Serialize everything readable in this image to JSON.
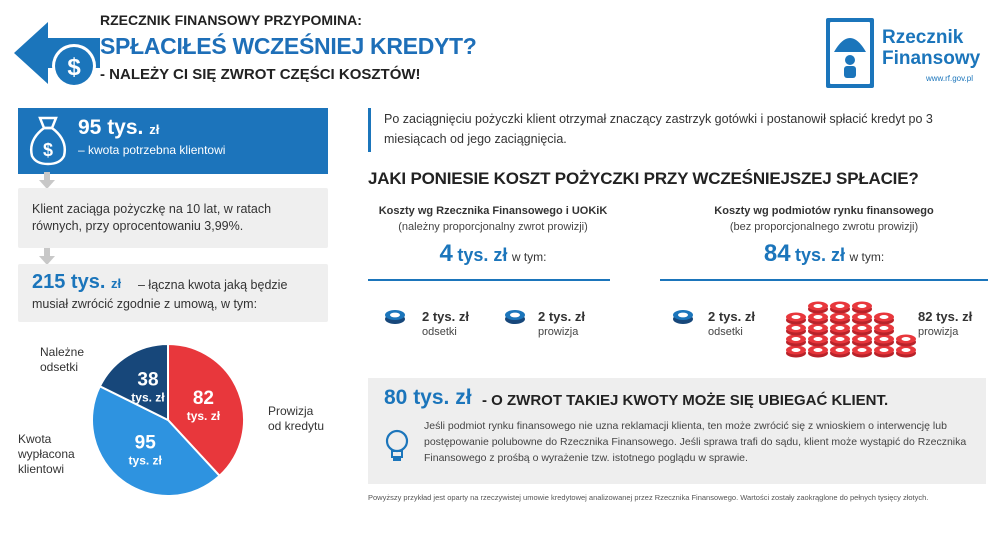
{
  "header": {
    "kicker": "RZECZNIK FINANSOWY PRZYPOMINA:",
    "title": "SPŁACIŁEŚ WCZEŚNIEJ KREDYT?",
    "subtitle": "- NALEŻY CI SIĘ ZWROT CZĘŚCI KOSZTÓW!"
  },
  "logo": {
    "line1": "Rzecznik",
    "line2": "Finansowy",
    "url": "www.rf.gov.pl"
  },
  "left": {
    "amount_value": "95 tys.",
    "amount_unit": "zł",
    "amount_desc": "– kwota potrzebna klientowi",
    "loan_desc": "Klient zaciąga pożyczkę na 10 lat, w ratach równych, przy oprocentowaniu 3,99%.",
    "total_value": "215 tys.",
    "total_unit": "zł",
    "total_desc_1": "– łączna kwota jaką będzie",
    "total_desc_2": "musiał zwrócić zgodnie z umową, w tym:"
  },
  "chart_data": {
    "type": "pie",
    "title": "",
    "slices": [
      {
        "label": "Prowizja od kredytu",
        "value": 82,
        "value_label": "82",
        "unit": "tys. zł",
        "color": "#e8373c"
      },
      {
        "label": "Kwota wypłacona klientowi",
        "value": 95,
        "value_label": "95",
        "unit": "tys. zł",
        "color": "#2e93e0"
      },
      {
        "label": "Należne odsetki",
        "value": 38,
        "value_label": "38",
        "unit": "tys. zł",
        "color": "#17477a"
      }
    ],
    "legend": "outside-labels"
  },
  "pie_labels": {
    "prowizja_1": "Prowizja",
    "prowizja_2": "od kredytu",
    "kwota_1": "Kwota",
    "kwota_2": "wypłacona",
    "kwota_3": "klientowi",
    "odsetki_1": "Należne",
    "odsetki_2": "odsetki"
  },
  "right": {
    "intro": "Po zaciągnięciu pożyczki klient otrzymał znaczący zastrzyk gotówki i postanowił spłacić kredyt po 3 miesiącach od jego zaciągnięcia.",
    "question": "JAKI PONIESIE KOSZT POŻYCZKI PRZY WCZEŚNIEJSZEJ SPŁACIE?",
    "col_a": {
      "heading": "Koszty wg Rzecznika Finansowego i UOKiK",
      "subheading": "(należny proporcjonalny zwrot prowizji)",
      "total_value": "4",
      "total_unit": "tys. zł",
      "total_suffix": "w tym:",
      "item1_value": "2 tys. zł",
      "item1_label": "odsetki",
      "item2_value": "2 tys. zł",
      "item2_label": "prowizja"
    },
    "col_b": {
      "heading": "Koszty wg podmiotów rynku finansowego",
      "subheading": "(bez proporcjonalnego zwrotu prowizji)",
      "total_value": "84",
      "total_unit": "tys. zł",
      "total_suffix": "w tym:",
      "item1_value": "2 tys. zł",
      "item1_label": "odsetki",
      "item2_value": "82 tys. zł",
      "item2_label": "prowizja"
    },
    "refund_value": "80 tys. zł",
    "refund_text": "- O ZWROT TAKIEJ KWOTY MOŻE SIĘ UBIEGAĆ KLIENT.",
    "refund_body": "Jeśli podmiot rynku finansowego nie uzna reklamacji klienta, ten może zwrócić się z wnioskiem o interwencję lub postępowanie polubowne do Rzecznika Finansowego. Jeśli sprawa trafi do sądu, klient może wystąpić do Rzecznika Finansowego z prośbą o wyrażenie tzw. istotnego poglądu w sprawie.",
    "footnote": "Powyższy przykład jest oparty na rzeczywistej umowie kredytowej analizowanej przez Rzecznika Finansowego. Wartości zostały zaokrąglone do pełnych tysięcy złotych."
  },
  "colors": {
    "brand_blue": "#1b75bb",
    "red": "#e8373c",
    "light_blue": "#2e93e0",
    "dark_blue": "#17477a"
  }
}
